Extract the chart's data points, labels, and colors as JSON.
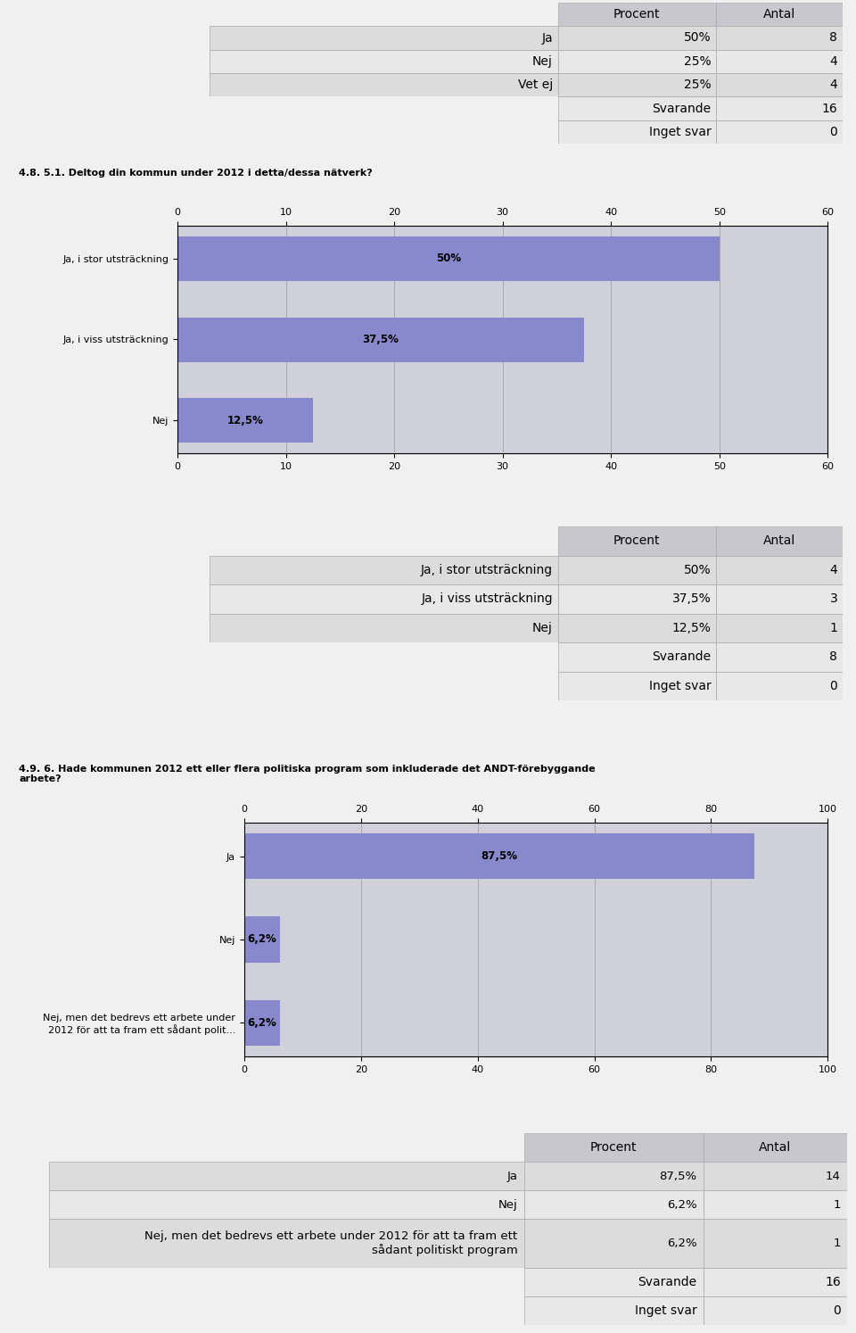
{
  "bg_color": "#f0f0f0",
  "table_bg_header": "#c8c8cc",
  "table_bg_row1": "#dcdcdc",
  "table_bg_row2": "#e8e8e8",
  "table_border_color": "#aaaaaa",
  "chart_bg": "#d0d0da",
  "bar_color": "#8888cc",
  "table1": {
    "headers": [
      "",
      "Procent",
      "Antal"
    ],
    "rows": [
      [
        "Ja",
        "50%",
        "8"
      ],
      [
        "Nej",
        "25%",
        "4"
      ],
      [
        "Vet ej",
        "25%",
        "4"
      ]
    ],
    "footer": [
      [
        "",
        "Svarande",
        "16"
      ],
      [
        "",
        "Inget svar",
        "0"
      ]
    ]
  },
  "chart1": {
    "title": "4.8. 5.1. Deltog din kommun under 2012 i detta/dessa nätverk?",
    "categories": [
      "Ja, i stor utsträckning",
      "Ja, i viss utsträckning",
      "Nej"
    ],
    "values": [
      50.0,
      37.5,
      12.5
    ],
    "labels": [
      "50%",
      "37,5%",
      "12,5%"
    ],
    "xlim": [
      0,
      60
    ],
    "xticks": [
      0,
      10,
      20,
      30,
      40,
      50,
      60
    ]
  },
  "table2": {
    "headers": [
      "",
      "Procent",
      "Antal"
    ],
    "rows": [
      [
        "Ja, i stor utsträckning",
        "50%",
        "4"
      ],
      [
        "Ja, i viss utsträckning",
        "37,5%",
        "3"
      ],
      [
        "Nej",
        "12,5%",
        "1"
      ]
    ],
    "footer": [
      [
        "",
        "Svarande",
        "8"
      ],
      [
        "",
        "Inget svar",
        "0"
      ]
    ]
  },
  "chart2": {
    "title": "4.9. 6. Hade kommunen 2012 ett eller flera politiska program som inkluderade det ANDT-förebyggande\narbete?",
    "categories": [
      "Ja",
      "Nej",
      "Nej, men det bedrevs ett arbete under\n2012 för att ta fram ett sådant polit..."
    ],
    "values": [
      87.5,
      6.2,
      6.2
    ],
    "labels": [
      "87,5%",
      "6,2%",
      "6,2%"
    ],
    "xlim": [
      0,
      100
    ],
    "xticks": [
      0,
      20,
      40,
      60,
      80,
      100
    ]
  },
  "table3": {
    "headers": [
      "",
      "Procent",
      "Antal"
    ],
    "rows": [
      [
        "Ja",
        "87,5%",
        "14"
      ],
      [
        "Nej",
        "6,2%",
        "1"
      ],
      [
        "Nej, men det bedrevs ett arbete under 2012 för att ta fram ett\nsådant politiskt program",
        "6,2%",
        "1"
      ]
    ],
    "footer": [
      [
        "",
        "Svarande",
        "16"
      ],
      [
        "",
        "Inget svar",
        "0"
      ]
    ]
  }
}
